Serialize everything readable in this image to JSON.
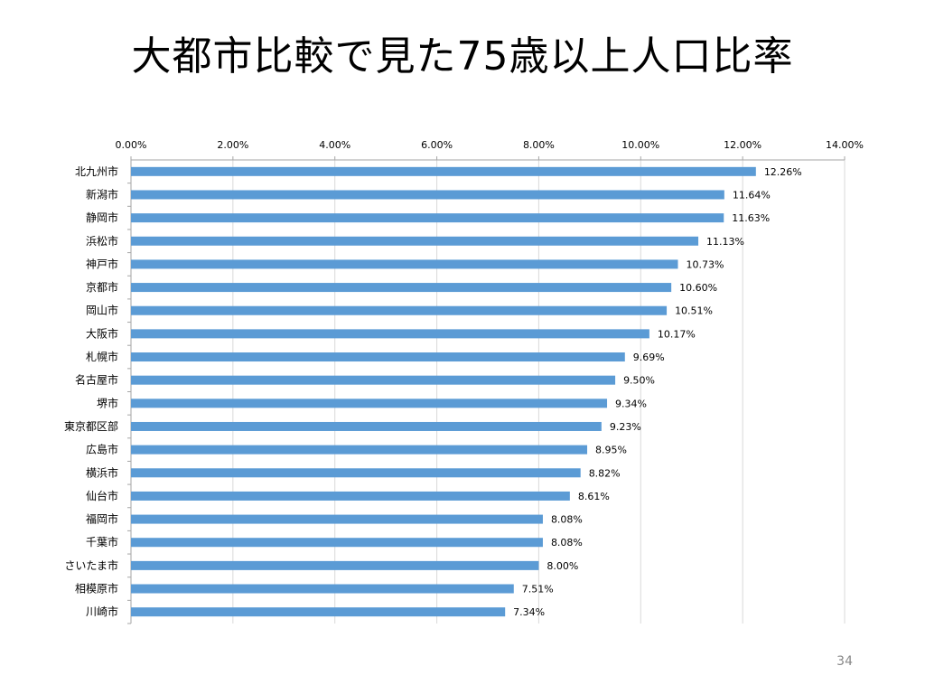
{
  "slide": {
    "title": "大都市比較で見た75歳以上人口比率",
    "page_number": "34"
  },
  "chart_data": {
    "type": "bar",
    "orientation": "horizontal",
    "title": "",
    "xlabel": "",
    "ylabel": "",
    "xlim": [
      0,
      14
    ],
    "x_ticks": [
      "0.00%",
      "2.00%",
      "4.00%",
      "6.00%",
      "8.00%",
      "10.00%",
      "12.00%",
      "14.00%"
    ],
    "x_axis_position": "top",
    "grid": true,
    "legend": "none",
    "bar_color": "#5b9bd5",
    "categories": [
      "北九州市",
      "新潟市",
      "静岡市",
      "浜松市",
      "神戸市",
      "京都市",
      "岡山市",
      "大阪市",
      "札幌市",
      "名古屋市",
      "堺市",
      "東京都区部",
      "広島市",
      "横浜市",
      "仙台市",
      "福岡市",
      "千葉市",
      "さいたま市",
      "相模原市",
      "川崎市"
    ],
    "values": [
      12.26,
      11.64,
      11.63,
      11.13,
      10.73,
      10.6,
      10.51,
      10.17,
      9.69,
      9.5,
      9.34,
      9.23,
      8.95,
      8.82,
      8.61,
      8.08,
      8.08,
      8.0,
      7.51,
      7.34
    ],
    "value_labels": [
      "12.26%",
      "11.64%",
      "11.63%",
      "11.13%",
      "10.73%",
      "10.60%",
      "10.51%",
      "10.17%",
      "9.69%",
      "9.50%",
      "9.34%",
      "9.23%",
      "8.95%",
      "8.82%",
      "8.61%",
      "8.08%",
      "8.08%",
      "8.00%",
      "7.51%",
      "7.34%"
    ]
  }
}
